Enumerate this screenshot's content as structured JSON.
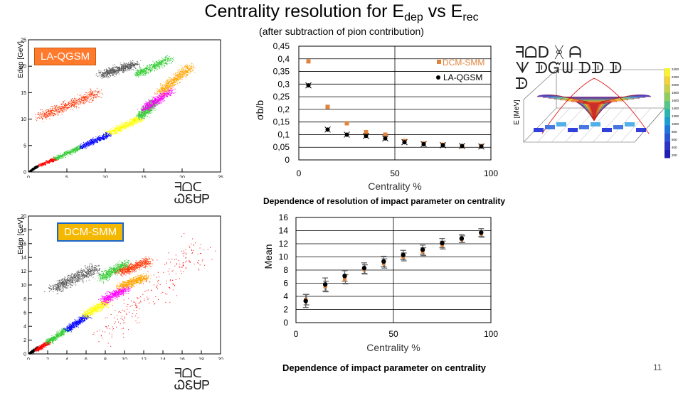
{
  "slide": {
    "title_main": "Centrality resolution for E",
    "title_sub1": "dep",
    "title_mid": " vs E",
    "title_sub2": "rec",
    "subtitle": "(after subtraction of pion contribution)",
    "page_number": "11",
    "caption_resolution": "Dependence of resolution of impact parameter on centrality",
    "caption_mean": "Dependence of impact parameter on centrality",
    "garbled_glyphs_1": "ᖷᗝᑕ\nᏇᏋᏌᏢ",
    "garbled_glyphs_2": "ᖷᗝᑕ\nᏇᏋᏌᏢ",
    "garbled_glyphs_3": "ᖷᗝᗞ ᚸ ᗩ\nᗐ ᗫᏳᗯ ᗪᗫ ᗫ\nᗬ"
  },
  "colors": {
    "orange_series": "#e2843c",
    "black_series": "#000000",
    "class_colors": [
      "#000000",
      "#ff0000",
      "#33cc33",
      "#0000ff",
      "#ffff00",
      "#ff00ff",
      "#ffa500",
      "#555555",
      "#ff3300"
    ]
  },
  "chart_data": [
    {
      "type": "scatter",
      "id": "laqgsm-scatter",
      "label": "LA-QGSM",
      "ylabel": "Edep [GeV]",
      "xlim": [
        0,
        25
      ],
      "ylim": [
        0,
        25
      ],
      "x_ticks": [
        "0",
        "5",
        "10",
        "15",
        "20",
        "25"
      ],
      "y_ticks": [
        "0",
        "5",
        "10",
        "15",
        "20",
        "25"
      ]
    },
    {
      "type": "scatter",
      "id": "dcmsmm-scatter",
      "label": "DCM-SMM",
      "ylabel": "Edep [GeV]",
      "xlim": [
        0,
        20
      ],
      "ylim": [
        0,
        20
      ],
      "x_ticks": [
        "0",
        "2",
        "4",
        "6",
        "8",
        "10",
        "12",
        "14",
        "16",
        "18",
        "20"
      ],
      "y_ticks": [
        "0",
        "2",
        "4",
        "6",
        "8",
        "10",
        "12",
        "14",
        "16",
        "18",
        "20"
      ]
    },
    {
      "type": "scatter",
      "id": "resolution-chart",
      "xlabel": "Centrality %",
      "ylabel": "σb/b",
      "xlim": [
        0,
        100
      ],
      "ylim": [
        0,
        0.45
      ],
      "x_ticks": [
        "0",
        "50",
        "100"
      ],
      "y_ticks": [
        "0",
        "0,05",
        "0,1",
        "0,15",
        "0,2",
        "0,25",
        "0,3",
        "0,35",
        "0,4",
        "0,45"
      ],
      "legend_position": "top-right",
      "series": [
        {
          "name": "DCM-SMM",
          "marker": "square",
          "color": "#e2843c",
          "x": [
            5,
            15,
            25,
            35,
            45,
            55,
            65,
            75,
            85,
            95
          ],
          "y": [
            0.39,
            0.21,
            0.145,
            0.11,
            0.1,
            0.075,
            0.065,
            0.06,
            0.055,
            0.055
          ]
        },
        {
          "name": "LA-QGSM",
          "marker": "star",
          "color": "#000000",
          "x": [
            5,
            15,
            25,
            35,
            45,
            55,
            65,
            75,
            85,
            95
          ],
          "y": [
            0.295,
            0.12,
            0.1,
            0.095,
            0.085,
            0.07,
            0.062,
            0.058,
            0.055,
            0.053
          ]
        }
      ]
    },
    {
      "type": "scatter",
      "id": "mean-chart",
      "xlabel": "Centrality %",
      "ylabel": "Mean",
      "xlim": [
        0,
        100
      ],
      "ylim": [
        0,
        16
      ],
      "x_ticks": [
        "0",
        "50",
        "100"
      ],
      "y_ticks": [
        "0",
        "2",
        "4",
        "6",
        "8",
        "10",
        "12",
        "14",
        "16"
      ],
      "series": [
        {
          "marker": "circle",
          "color": "#000000",
          "x": [
            5,
            15,
            25,
            35,
            45,
            55,
            65,
            75,
            85,
            95
          ],
          "y": [
            3.3,
            5.8,
            7.1,
            8.3,
            9.3,
            10.3,
            11.1,
            12.1,
            12.8,
            13.7
          ],
          "err": [
            1.0,
            1.0,
            0.8,
            0.8,
            0.8,
            0.7,
            0.7,
            0.7,
            0.6,
            0.6
          ]
        },
        {
          "marker": "square",
          "color": "#e2843c",
          "x": [
            5,
            15,
            25,
            35,
            45,
            55,
            65,
            75,
            85,
            95
          ],
          "y": [
            3.5,
            5.5,
            6.6,
            8.1,
            9.0,
            10.0,
            10.8,
            11.8,
            12.7,
            13.5
          ],
          "err": [
            0.8,
            0.8,
            0.7,
            0.7,
            0.7,
            0.6,
            0.6,
            0.6,
            0.5,
            0.5
          ]
        }
      ]
    },
    {
      "type": "surface",
      "id": "surface-3d",
      "label": "E [MeV]",
      "z_ticks": [
        "200",
        "400",
        "600",
        "800",
        "1000",
        "1200",
        "1400",
        "1600",
        "1800",
        "2000",
        "2200",
        "2400"
      ]
    }
  ]
}
